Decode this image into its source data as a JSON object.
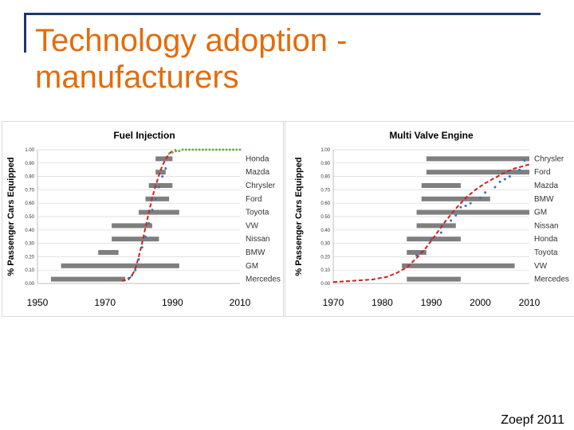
{
  "slide": {
    "title": "Technology adoption - manufacturers",
    "credit": "Zoepf 2011",
    "title_color": "#e46c0a",
    "frame_color": "#1f3864"
  },
  "chart_data": [
    {
      "type": "line",
      "title": "Fuel Injection",
      "ylabel": "% Passenger Cars Equipped",
      "xlabel": "",
      "xlim": [
        1950,
        2010
      ],
      "ylim": [
        0,
        1
      ],
      "xticks": [
        "1950",
        "1970",
        "1990",
        "2010"
      ],
      "yticks": [
        "0.00",
        "0.10",
        "0.20",
        "0.30",
        "0.40",
        "0.50",
        "0.60",
        "0.70",
        "0.80",
        "0.90",
        "1.00"
      ],
      "grid": true,
      "manufacturers": [
        {
          "name": "Honda",
          "start": 1985,
          "end": 1990
        },
        {
          "name": "Mazda",
          "start": 1985,
          "end": 1988
        },
        {
          "name": "Chrysler",
          "start": 1983,
          "end": 1990
        },
        {
          "name": "Ford",
          "start": 1982,
          "end": 1989
        },
        {
          "name": "Toyota",
          "start": 1980,
          "end": 1992
        },
        {
          "name": "VW",
          "start": 1972,
          "end": 1984
        },
        {
          "name": "Nissan",
          "start": 1972,
          "end": 1986
        },
        {
          "name": "BMW",
          "start": 1968,
          "end": 1974
        },
        {
          "name": "GM",
          "start": 1957,
          "end": 1992
        },
        {
          "name": "Mercedes",
          "start": 1954,
          "end": 1976
        }
      ],
      "series": [
        {
          "name": "logistic fit",
          "color": "#d0201f",
          "style": "dashed",
          "x": [
            1975,
            1977,
            1978,
            1979,
            1980,
            1981,
            1982,
            1983,
            1984,
            1985,
            1986,
            1987,
            1988,
            1989,
            1990,
            1991
          ],
          "y": [
            0.02,
            0.03,
            0.06,
            0.11,
            0.2,
            0.3,
            0.42,
            0.53,
            0.64,
            0.73,
            0.81,
            0.88,
            0.93,
            0.97,
            0.99,
            1.0
          ]
        },
        {
          "name": "observed",
          "color": "#2f75b5",
          "style": "points",
          "x": [
            1977,
            1978,
            1979,
            1980,
            1981,
            1982,
            1983,
            1984,
            1985,
            1986,
            1987,
            1988
          ],
          "y": [
            0.04,
            0.06,
            0.1,
            0.18,
            0.27,
            0.35,
            0.45,
            0.55,
            0.63,
            0.72,
            0.8,
            0.86
          ]
        },
        {
          "name": "saturation",
          "color": "#70ad47",
          "style": "points",
          "x": [
            1989,
            1990,
            1991,
            1992,
            1993,
            1994,
            1995,
            1996,
            1997,
            1998,
            1999,
            2000,
            2001,
            2002,
            2003,
            2004,
            2005,
            2006,
            2007,
            2008,
            2009,
            2010
          ],
          "y": [
            0.97,
            0.98,
            0.99,
            0.99,
            1.0,
            1.0,
            1.0,
            1.0,
            1.0,
            1.0,
            1.0,
            1.0,
            1.0,
            1.0,
            1.0,
            1.0,
            1.0,
            1.0,
            1.0,
            1.0,
            1.0,
            1.0
          ]
        }
      ]
    },
    {
      "type": "line",
      "title": "Multi Valve Engine",
      "ylabel": "% Passenger Cars Equipped",
      "xlabel": "",
      "xlim": [
        1970,
        2010
      ],
      "ylim": [
        0,
        1
      ],
      "xticks": [
        "1970",
        "1980",
        "1990",
        "2000",
        "2010"
      ],
      "yticks": [
        "0.00",
        "0.10",
        "0.20",
        "0.30",
        "0.40",
        "0.50",
        "0.60",
        "0.70",
        "0.80",
        "0.90",
        "1.00"
      ],
      "grid": true,
      "manufacturers": [
        {
          "name": "Chrysler",
          "start": 1989,
          "end": 2010
        },
        {
          "name": "Ford",
          "start": 1989,
          "end": 2010
        },
        {
          "name": "Mazda",
          "start": 1988,
          "end": 1996
        },
        {
          "name": "BMW",
          "start": 1988,
          "end": 2002
        },
        {
          "name": "GM",
          "start": 1987,
          "end": 2010
        },
        {
          "name": "Nissan",
          "start": 1987,
          "end": 1995
        },
        {
          "name": "Honda",
          "start": 1985,
          "end": 1996
        },
        {
          "name": "Toyota",
          "start": 1985,
          "end": 1989
        },
        {
          "name": "VW",
          "start": 1984,
          "end": 2007
        },
        {
          "name": "Mercedes",
          "start": 1985,
          "end": 1996
        }
      ],
      "series": [
        {
          "name": "logistic fit",
          "color": "#d0201f",
          "style": "dashed",
          "x": [
            1970,
            1974,
            1978,
            1981,
            1983,
            1985,
            1987,
            1989,
            1991,
            1993,
            1995,
            1997,
            1999,
            2001,
            2003,
            2005,
            2007,
            2009,
            2010
          ],
          "y": [
            0.01,
            0.02,
            0.03,
            0.05,
            0.08,
            0.12,
            0.19,
            0.27,
            0.37,
            0.47,
            0.56,
            0.64,
            0.7,
            0.75,
            0.79,
            0.83,
            0.86,
            0.88,
            0.89
          ]
        },
        {
          "name": "observed",
          "color": "#2f75b5",
          "style": "points",
          "x": [
            1987,
            1990,
            1992,
            1994,
            1995,
            1996,
            1997,
            1998,
            2000,
            2001,
            2003,
            2004,
            2005,
            2006,
            2008,
            2009
          ],
          "y": [
            0.21,
            0.33,
            0.38,
            0.47,
            0.51,
            0.57,
            0.58,
            0.6,
            0.64,
            0.68,
            0.72,
            0.76,
            0.78,
            0.8,
            0.85,
            0.92
          ]
        }
      ]
    }
  ]
}
